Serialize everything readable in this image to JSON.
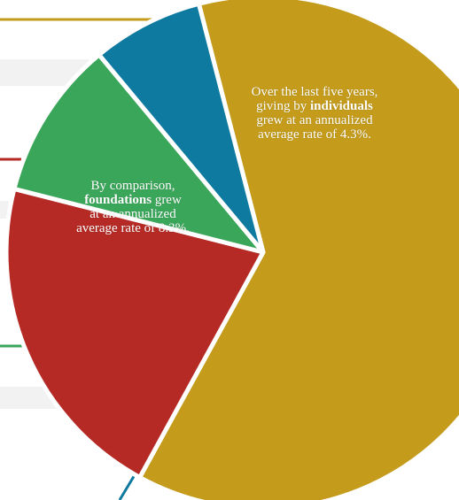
{
  "chart_data": {
    "type": "pie",
    "title": "",
    "series": [
      {
        "values": [
          62,
          21,
          10,
          7
        ],
        "colors": [
          "#c49b1a",
          "#b52a25",
          "#3aa65a",
          "#0f7aa0"
        ]
      }
    ],
    "annotations": {
      "individuals": {
        "line1": "Over the last five years,",
        "line2_pre": "giving by ",
        "line2_bold": "individuals",
        "line3": "grew at an annualized",
        "line4": "average rate of 4.3%."
      },
      "foundations": {
        "line1": "By comparison,",
        "line2_bold": "foundations",
        "line2_post": " grew",
        "line3": "at an annualized",
        "line4": "average rate of 8.3%."
      }
    }
  }
}
